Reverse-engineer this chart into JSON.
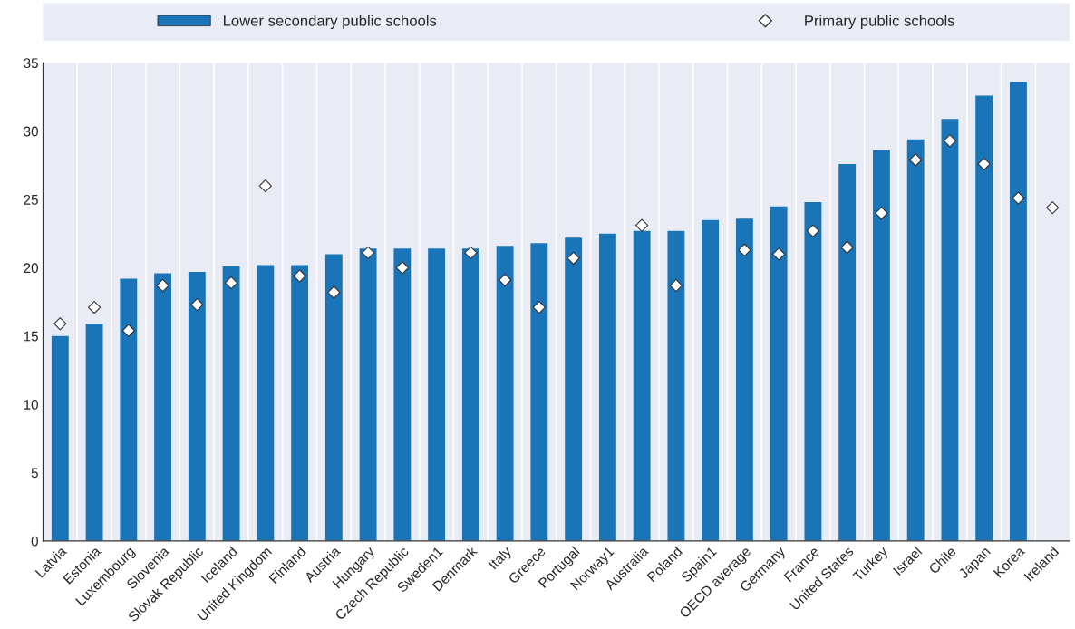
{
  "chart_data": {
    "type": "bar",
    "categories": [
      "Latvia",
      "Estonia",
      "Luxembourg",
      "Slovenia",
      "Slovak Republic",
      "Iceland",
      "United Kingdom",
      "Finland",
      "Austria",
      "Hungary",
      "Czech Republic",
      "Sweden1",
      "Denmark",
      "Italy",
      "Greece",
      "Portugal",
      "Norway1",
      "Australia",
      "Poland",
      "Spain1",
      "OECD average",
      "Germany",
      "France",
      "United States",
      "Turkey",
      "Israel",
      "Chile",
      "Japan",
      "Korea",
      "Ireland"
    ],
    "series": [
      {
        "name": "Lower secondary public schools",
        "color": "#1a74b8",
        "values": [
          15.0,
          15.9,
          19.2,
          19.6,
          19.7,
          20.1,
          20.2,
          20.2,
          21.0,
          21.4,
          21.4,
          21.4,
          21.4,
          21.6,
          21.8,
          22.2,
          22.5,
          22.7,
          22.7,
          23.5,
          23.6,
          24.5,
          24.8,
          27.6,
          28.6,
          29.4,
          30.9,
          32.6,
          33.6,
          null
        ]
      },
      {
        "name": "Primary public schools",
        "type": "scatter",
        "marker": "diamond",
        "color": "#ffffff",
        "values": [
          15.9,
          17.1,
          15.4,
          18.7,
          17.3,
          18.9,
          26.0,
          19.4,
          18.2,
          21.1,
          20.0,
          null,
          21.1,
          19.1,
          17.1,
          20.7,
          null,
          23.1,
          18.7,
          null,
          21.3,
          21.0,
          22.7,
          21.5,
          24.0,
          27.9,
          29.3,
          27.6,
          25.1,
          24.4
        ]
      }
    ],
    "ylim": [
      0,
      35
    ],
    "yticks": [
      0,
      5,
      10,
      15,
      20,
      25,
      30,
      35
    ],
    "grid": "x",
    "legend": "top"
  }
}
